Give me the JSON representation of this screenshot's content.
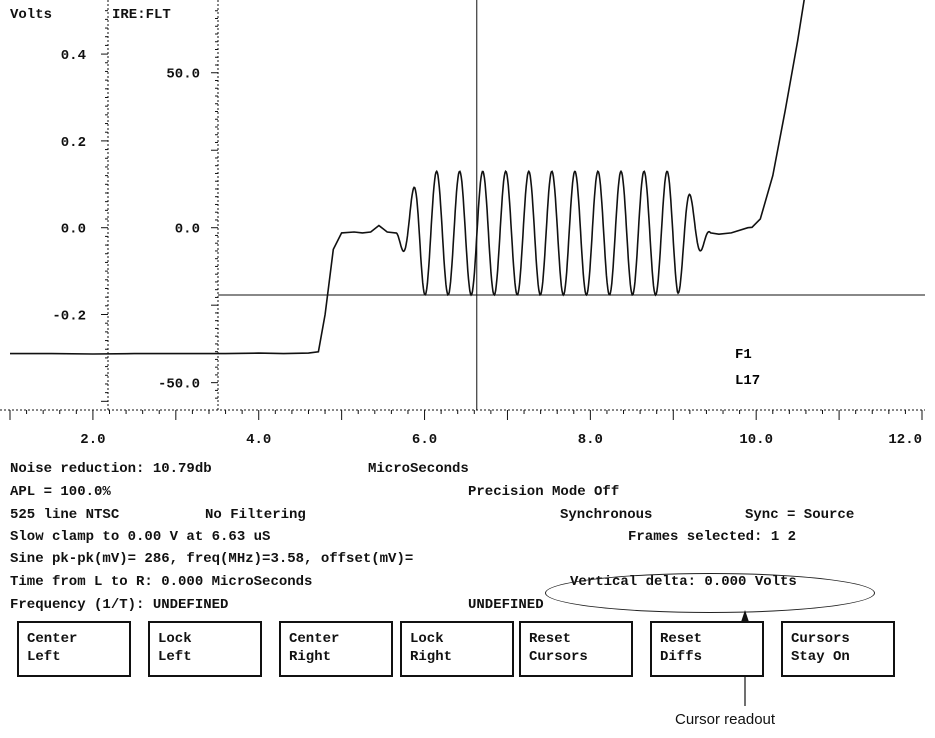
{
  "chart_data": {
    "type": "line",
    "left_axis_title": "Volts",
    "left_tick_labels": [
      "0.4",
      "0.2",
      "0.0",
      "-0.2"
    ],
    "ire_axis_title": "IRE:FLT",
    "ire_tick_labels": [
      "50.0",
      "0.0",
      "-50.0"
    ],
    "x_tick_labels": [
      "2.0",
      "4.0",
      "6.0",
      "8.0",
      "10.0",
      "12.0"
    ],
    "xlim": [
      1.0,
      12.0
    ],
    "ylim": [
      -0.42,
      0.52
    ],
    "cursor_x": 6.63,
    "cursor_y": -0.155,
    "field_label": "F1",
    "line_label": "L17",
    "series": [
      {
        "x": [
          1.0,
          1.5,
          2.0,
          2.5,
          3.0,
          3.6,
          4.0,
          4.3,
          4.6,
          4.72,
          4.8,
          4.9,
          5.0,
          5.15,
          5.25,
          5.35,
          5.45,
          5.55,
          5.65,
          9.9,
          9.95,
          10.05,
          10.2,
          10.35,
          10.5,
          10.6
        ],
        "y": [
          -0.29,
          -0.29,
          -0.291,
          -0.29,
          -0.29,
          -0.29,
          -0.289,
          -0.29,
          -0.289,
          -0.286,
          -0.2,
          -0.05,
          -0.012,
          -0.01,
          -0.012,
          -0.01,
          0.005,
          -0.01,
          -0.012,
          0.0,
          0.001,
          0.02,
          0.12,
          0.27,
          0.43,
          0.55
        ]
      }
    ],
    "burst": {
      "center_freq_mhz": 3.58,
      "start": 5.3,
      "end": 9.3,
      "peak": 0.13,
      "trough": -0.155
    }
  },
  "readouts": {
    "noise": "Noise reduction: 10.79db",
    "units": "MicroSeconds",
    "apl": "APL = 100.0%",
    "precision": "Precision Mode Off",
    "line_std": "525 line NTSC",
    "filtering": "No Filtering",
    "sync_mode": "Synchronous",
    "sync_src": "Sync = Source",
    "clamp": "Slow clamp to 0.00 V at 6.63 uS",
    "frames": "Frames selected: 1 2",
    "sine": "Sine pk-pk(mV)= 286, freq(MHz)=3.58, offset(mV)=",
    "time_delta": "Time from L to R: 0.000 MicroSeconds",
    "vertical_delta": "Vertical delta: 0.000 Volts",
    "frequency": "Frequency (1/T): UNDEFINED",
    "undefined": "UNDEFINED"
  },
  "buttons": [
    {
      "line1": "Center",
      "line2": "Left"
    },
    {
      "line1": "Lock",
      "line2": "Left"
    },
    {
      "line1": "Center",
      "line2": "Right"
    },
    {
      "line1": "Lock",
      "line2": "Right"
    },
    {
      "line1": "Reset",
      "line2": "Cursors"
    },
    {
      "line1": "Reset",
      "line2": "Diffs"
    },
    {
      "line1": "Cursors",
      "line2": "Stay On"
    }
  ],
  "annotation": {
    "label": "Cursor readout"
  }
}
